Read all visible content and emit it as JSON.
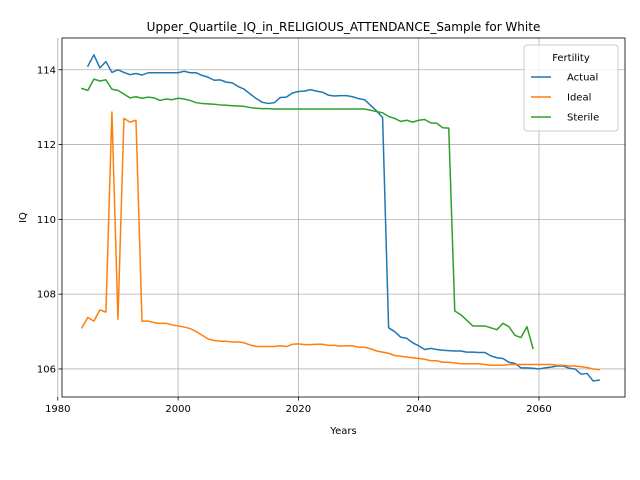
{
  "chart_data": {
    "type": "line",
    "title": "Upper_Quartile_IQ_in_RELIGIOUS_ATTENDANCE_Sample for White",
    "xlabel": "Years",
    "ylabel": "IQ",
    "xlim": [
      1980.7,
      2074.3
    ],
    "ylim": [
      105.25,
      114.85
    ],
    "xticks": [
      1980,
      2000,
      2020,
      2040,
      2060
    ],
    "yticks": [
      106,
      108,
      110,
      112,
      114
    ],
    "grid": true,
    "legend": {
      "title": "Fertility",
      "placement": "top-right"
    },
    "series": [
      {
        "name": "Actual",
        "color": "#1f77b4",
        "points": [
          [
            1985,
            114.1
          ],
          [
            1986,
            114.4
          ],
          [
            1987,
            114.05
          ],
          [
            1988,
            114.22
          ],
          [
            1989,
            113.93
          ],
          [
            1990,
            114.0
          ],
          [
            1991,
            113.93
          ],
          [
            1992,
            113.87
          ],
          [
            1993,
            113.9
          ],
          [
            1994,
            113.86
          ],
          [
            1995,
            113.92
          ],
          [
            1996,
            113.92
          ],
          [
            1997,
            113.92
          ],
          [
            1998,
            113.92
          ],
          [
            1999,
            113.92
          ],
          [
            2000,
            113.92
          ],
          [
            2001,
            113.96
          ],
          [
            2002,
            113.92
          ],
          [
            2003,
            113.92
          ],
          [
            2004,
            113.85
          ],
          [
            2005,
            113.8
          ],
          [
            2006,
            113.72
          ],
          [
            2007,
            113.73
          ],
          [
            2008,
            113.67
          ],
          [
            2009,
            113.65
          ],
          [
            2010,
            113.55
          ],
          [
            2011,
            113.48
          ],
          [
            2012,
            113.35
          ],
          [
            2013,
            113.23
          ],
          [
            2014,
            113.13
          ],
          [
            2015,
            113.1
          ],
          [
            2016,
            113.12
          ],
          [
            2017,
            113.26
          ],
          [
            2018,
            113.27
          ],
          [
            2019,
            113.38
          ],
          [
            2020,
            113.42
          ],
          [
            2021,
            113.43
          ],
          [
            2022,
            113.47
          ],
          [
            2023,
            113.43
          ],
          [
            2024,
            113.4
          ],
          [
            2025,
            113.32
          ],
          [
            2026,
            113.3
          ],
          [
            2027,
            113.31
          ],
          [
            2028,
            113.31
          ],
          [
            2029,
            113.28
          ],
          [
            2030,
            113.23
          ],
          [
            2031,
            113.2
          ],
          [
            2032,
            113.05
          ],
          [
            2033,
            112.9
          ],
          [
            2034,
            112.72
          ],
          [
            2035,
            107.1
          ],
          [
            2036,
            107.0
          ],
          [
            2037,
            106.85
          ],
          [
            2038,
            106.82
          ],
          [
            2039,
            106.7
          ],
          [
            2040,
            106.62
          ],
          [
            2041,
            106.52
          ],
          [
            2042,
            106.55
          ],
          [
            2043,
            106.52
          ],
          [
            2044,
            106.5
          ],
          [
            2045,
            106.49
          ],
          [
            2046,
            106.48
          ],
          [
            2047,
            106.48
          ],
          [
            2048,
            106.45
          ],
          [
            2049,
            106.45
          ],
          [
            2050,
            106.44
          ],
          [
            2051,
            106.44
          ],
          [
            2052,
            106.35
          ],
          [
            2053,
            106.3
          ],
          [
            2054,
            106.28
          ],
          [
            2055,
            106.18
          ],
          [
            2056,
            106.15
          ],
          [
            2057,
            106.03
          ],
          [
            2058,
            106.03
          ],
          [
            2059,
            106.02
          ],
          [
            2060,
            106.0
          ],
          [
            2061,
            106.03
          ],
          [
            2062,
            106.05
          ],
          [
            2063,
            106.08
          ],
          [
            2064,
            106.08
          ],
          [
            2065,
            106.02
          ],
          [
            2066,
            106.0
          ],
          [
            2067,
            105.86
          ],
          [
            2068,
            105.88
          ],
          [
            2069,
            105.68
          ],
          [
            2070,
            105.7
          ]
        ]
      },
      {
        "name": "Ideal",
        "color": "#ff7f0e",
        "points": [
          [
            1984,
            107.1
          ],
          [
            1985,
            107.38
          ],
          [
            1986,
            107.28
          ],
          [
            1987,
            107.58
          ],
          [
            1988,
            107.52
          ],
          [
            1989,
            112.87
          ],
          [
            1990,
            107.33
          ],
          [
            1991,
            112.7
          ],
          [
            1992,
            112.6
          ],
          [
            1993,
            112.65
          ],
          [
            1994,
            107.28
          ],
          [
            1995,
            107.28
          ],
          [
            1996,
            107.24
          ],
          [
            1997,
            107.22
          ],
          [
            1998,
            107.22
          ],
          [
            1999,
            107.18
          ],
          [
            2000,
            107.15
          ],
          [
            2001,
            107.12
          ],
          [
            2002,
            107.08
          ],
          [
            2003,
            107.0
          ],
          [
            2004,
            106.9
          ],
          [
            2005,
            106.8
          ],
          [
            2006,
            106.76
          ],
          [
            2007,
            106.74
          ],
          [
            2008,
            106.74
          ],
          [
            2009,
            106.72
          ],
          [
            2010,
            106.72
          ],
          [
            2011,
            106.7
          ],
          [
            2012,
            106.64
          ],
          [
            2013,
            106.6
          ],
          [
            2014,
            106.6
          ],
          [
            2015,
            106.6
          ],
          [
            2016,
            106.6
          ],
          [
            2017,
            106.62
          ],
          [
            2018,
            106.6
          ],
          [
            2019,
            106.66
          ],
          [
            2020,
            106.67
          ],
          [
            2021,
            106.65
          ],
          [
            2022,
            106.65
          ],
          [
            2023,
            106.66
          ],
          [
            2024,
            106.66
          ],
          [
            2025,
            106.63
          ],
          [
            2026,
            106.63
          ],
          [
            2027,
            106.61
          ],
          [
            2028,
            106.62
          ],
          [
            2029,
            106.62
          ],
          [
            2030,
            106.58
          ],
          [
            2031,
            106.58
          ],
          [
            2032,
            106.54
          ],
          [
            2033,
            106.48
          ],
          [
            2034,
            106.45
          ],
          [
            2035,
            106.42
          ],
          [
            2036,
            106.36
          ],
          [
            2037,
            106.34
          ],
          [
            2038,
            106.32
          ],
          [
            2039,
            106.3
          ],
          [
            2040,
            106.28
          ],
          [
            2041,
            106.26
          ],
          [
            2042,
            106.22
          ],
          [
            2043,
            106.22
          ],
          [
            2044,
            106.18
          ],
          [
            2045,
            106.18
          ],
          [
            2046,
            106.16
          ],
          [
            2047,
            106.14
          ],
          [
            2048,
            106.14
          ],
          [
            2049,
            106.14
          ],
          [
            2050,
            106.14
          ],
          [
            2051,
            106.12
          ],
          [
            2052,
            106.1
          ],
          [
            2053,
            106.1
          ],
          [
            2054,
            106.1
          ],
          [
            2055,
            106.12
          ],
          [
            2056,
            106.12
          ],
          [
            2057,
            106.12
          ],
          [
            2058,
            106.12
          ],
          [
            2059,
            106.12
          ],
          [
            2060,
            106.12
          ],
          [
            2061,
            106.12
          ],
          [
            2062,
            106.12
          ],
          [
            2063,
            106.1
          ],
          [
            2064,
            106.1
          ],
          [
            2065,
            106.08
          ],
          [
            2066,
            106.08
          ],
          [
            2067,
            106.06
          ],
          [
            2068,
            106.04
          ],
          [
            2069,
            106.0
          ],
          [
            2070,
            105.98
          ]
        ]
      },
      {
        "name": "Sterile",
        "color": "#2ca02c",
        "points": [
          [
            1984,
            113.5
          ],
          [
            1985,
            113.45
          ],
          [
            1986,
            113.75
          ],
          [
            1987,
            113.7
          ],
          [
            1988,
            113.73
          ],
          [
            1989,
            113.48
          ],
          [
            1990,
            113.45
          ],
          [
            1991,
            113.35
          ],
          [
            1992,
            113.25
          ],
          [
            1993,
            113.28
          ],
          [
            1994,
            113.24
          ],
          [
            1995,
            113.27
          ],
          [
            1996,
            113.25
          ],
          [
            1997,
            113.18
          ],
          [
            1998,
            113.22
          ],
          [
            1999,
            113.2
          ],
          [
            2000,
            113.24
          ],
          [
            2001,
            113.22
          ],
          [
            2002,
            113.18
          ],
          [
            2003,
            113.12
          ],
          [
            2004,
            113.1
          ],
          [
            2005,
            113.09
          ],
          [
            2006,
            113.08
          ],
          [
            2007,
            113.06
          ],
          [
            2008,
            113.05
          ],
          [
            2009,
            113.04
          ],
          [
            2010,
            113.03
          ],
          [
            2011,
            113.02
          ],
          [
            2012,
            112.99
          ],
          [
            2013,
            112.97
          ],
          [
            2014,
            112.96
          ],
          [
            2015,
            112.96
          ],
          [
            2016,
            112.95
          ],
          [
            2017,
            112.95
          ],
          [
            2018,
            112.95
          ],
          [
            2019,
            112.95
          ],
          [
            2020,
            112.95
          ],
          [
            2021,
            112.95
          ],
          [
            2022,
            112.95
          ],
          [
            2023,
            112.95
          ],
          [
            2024,
            112.95
          ],
          [
            2025,
            112.95
          ],
          [
            2026,
            112.95
          ],
          [
            2027,
            112.95
          ],
          [
            2028,
            112.95
          ],
          [
            2029,
            112.95
          ],
          [
            2030,
            112.95
          ],
          [
            2031,
            112.95
          ],
          [
            2032,
            112.92
          ],
          [
            2033,
            112.88
          ],
          [
            2034,
            112.85
          ],
          [
            2035,
            112.75
          ],
          [
            2036,
            112.7
          ],
          [
            2037,
            112.62
          ],
          [
            2038,
            112.65
          ],
          [
            2039,
            112.6
          ],
          [
            2040,
            112.65
          ],
          [
            2041,
            112.67
          ],
          [
            2042,
            112.58
          ],
          [
            2043,
            112.57
          ],
          [
            2044,
            112.45
          ],
          [
            2045,
            112.44
          ],
          [
            2046,
            107.55
          ],
          [
            2047,
            107.45
          ],
          [
            2048,
            107.3
          ],
          [
            2049,
            107.15
          ],
          [
            2050,
            107.15
          ],
          [
            2051,
            107.15
          ],
          [
            2052,
            107.1
          ],
          [
            2053,
            107.05
          ],
          [
            2054,
            107.22
          ],
          [
            2055,
            107.13
          ],
          [
            2056,
            106.9
          ],
          [
            2057,
            106.84
          ],
          [
            2058,
            107.13
          ],
          [
            2059,
            106.55
          ]
        ]
      }
    ]
  }
}
